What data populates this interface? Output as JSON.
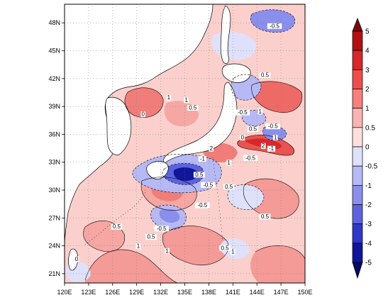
{
  "map": {
    "x_ticks": [
      "120E",
      "123E",
      "126E",
      "129E",
      "132E",
      "135E",
      "138E",
      "141E",
      "144E",
      "147E",
      "150E"
    ],
    "y_ticks": [
      "48N",
      "45N",
      "42N",
      "39N",
      "36N",
      "33N",
      "30N",
      "27N",
      "24N",
      "21N"
    ],
    "lon_range": [
      120,
      150
    ],
    "lat_range": [
      20,
      50
    ],
    "grid": "dotted",
    "contour_labels": [
      {
        "text": "-0.5",
        "lon": 146.2,
        "lat": 47.5
      },
      {
        "text": "0.5",
        "lon": 145.0,
        "lat": 42.2
      },
      {
        "text": "1",
        "lon": 133.0,
        "lat": 39.8
      },
      {
        "text": "1",
        "lon": 135.2,
        "lat": 39.5
      },
      {
        "text": "0.5",
        "lon": 136.0,
        "lat": 38.7
      },
      {
        "text": "0",
        "lon": 129.8,
        "lat": 38.0
      },
      {
        "text": "-0.5",
        "lon": 142.2,
        "lat": 38.2
      },
      {
        "text": "1",
        "lon": 144.4,
        "lat": 38.3
      },
      {
        "text": "0.5",
        "lon": 143.5,
        "lat": 36.4
      },
      {
        "text": "-0.5",
        "lon": 146.0,
        "lat": 36.7
      },
      {
        "text": "0",
        "lon": 142.2,
        "lat": 35.5
      },
      {
        "text": "2",
        "lon": 144.8,
        "lat": 34.6
      },
      {
        "text": "1",
        "lon": 146.3,
        "lat": 35.5
      },
      {
        "text": "-1",
        "lon": 145.8,
        "lat": 34.3
      },
      {
        "text": "2",
        "lon": 138.3,
        "lat": 34.3
      },
      {
        "text": "-1",
        "lon": 137.2,
        "lat": 33.2
      },
      {
        "text": "1",
        "lon": 140.5,
        "lat": 32.8
      },
      {
        "text": "-0.5",
        "lon": 143.2,
        "lat": 33.3
      },
      {
        "text": "0.5",
        "lon": 136.8,
        "lat": 31.5
      },
      {
        "text": "-0.5",
        "lon": 137.9,
        "lat": 30.4
      },
      {
        "text": "0.5",
        "lon": 140.5,
        "lat": 30.2
      },
      {
        "text": "-0.5",
        "lon": 137.2,
        "lat": 28.2
      },
      {
        "text": "0.5",
        "lon": 126.5,
        "lat": 25.9
      },
      {
        "text": "-0.5",
        "lon": 132.1,
        "lat": 25.7
      },
      {
        "text": "0.5",
        "lon": 130.8,
        "lat": 24.8
      },
      {
        "text": "0.5",
        "lon": 145.0,
        "lat": 27.0
      },
      {
        "text": "1",
        "lon": 129.2,
        "lat": 23.8
      },
      {
        "text": "1",
        "lon": 132.8,
        "lat": 23.3
      },
      {
        "text": "0.5",
        "lon": 140.0,
        "lat": 23.6
      },
      {
        "text": "1",
        "lon": 141.0,
        "lat": 23.2
      },
      {
        "text": "0",
        "lon": 121.5,
        "lat": 22.4
      }
    ]
  },
  "colorbar": {
    "labels": [
      "5",
      "4",
      "3",
      "2",
      "1",
      "0.5",
      "0",
      "-0.5",
      "-1",
      "-2",
      "-3",
      "-4",
      "-5"
    ],
    "colors": [
      "#7a0a0a",
      "#b40f12",
      "#d8272a",
      "#ee4d4b",
      "#f7807c",
      "#fab3b0",
      "#fde0de",
      "#dfe1fb",
      "#b6b9f5",
      "#8a8eec",
      "#5c62df",
      "#2f36cc",
      "#101699",
      "#040b63"
    ]
  }
}
